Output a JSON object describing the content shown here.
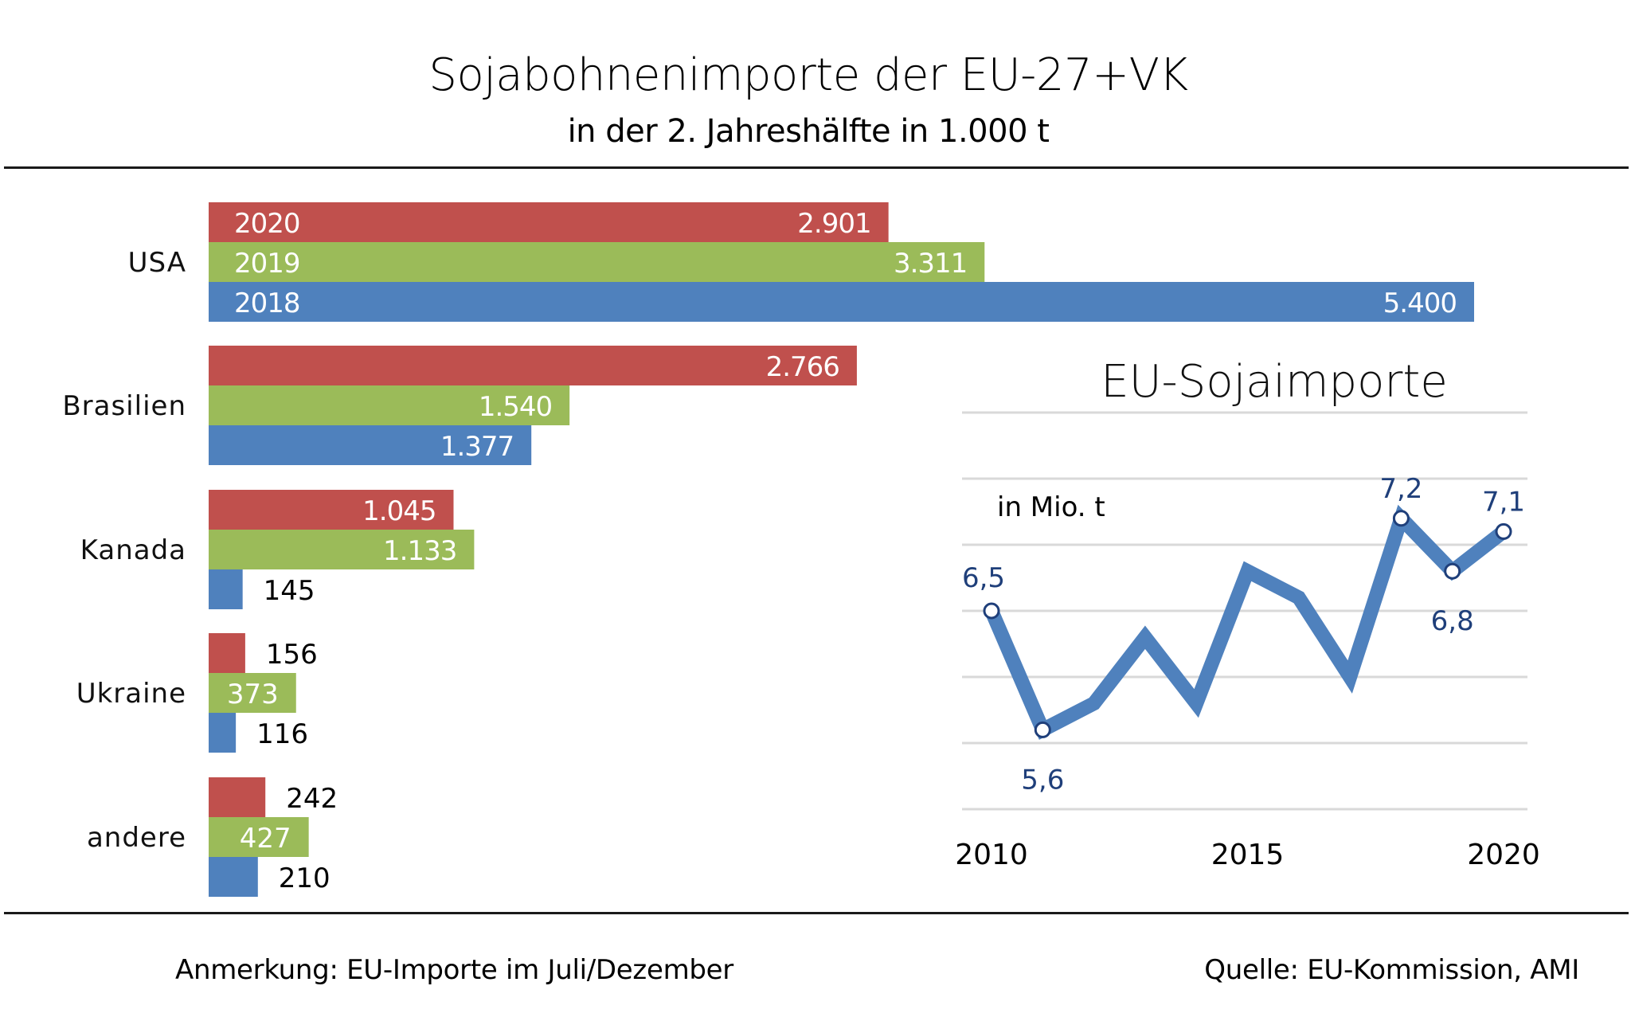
{
  "header": {
    "title": "Sojabohnenimporte  der EU-27+VK",
    "subtitle": "in der 2. Jahreshälfte  in 1.000 t"
  },
  "footer": {
    "note": "Anmerkung: EU-Importe im Juli/Dezember",
    "source": "Quelle:  EU-Kommission, AMI"
  },
  "colors": {
    "2020": "#c0504d",
    "2019": "#9bbb59",
    "2018": "#4f81bd",
    "line": "#4f81bd",
    "line_label": "#1f3f7a",
    "grid": "#d9d9d9"
  },
  "chart_data": [
    {
      "type": "bar",
      "orientation": "horizontal",
      "title": "Sojabohnenimporte  der EU-27+VK",
      "subtitle": "in der 2. Jahreshälfte  in 1.000 t",
      "categories": [
        "USA",
        "Brasilien",
        "Kanada",
        "Ukraine",
        "andere"
      ],
      "series": [
        {
          "name": "2020",
          "values": [
            2901,
            2766,
            1045,
            156,
            242
          ],
          "labels": [
            "2.901",
            "2.766",
            "1.045",
            "156",
            "242"
          ]
        },
        {
          "name": "2019",
          "values": [
            3311,
            1540,
            1133,
            373,
            427
          ],
          "labels": [
            "3.311",
            "1.540",
            "1.133",
            "373",
            "427"
          ]
        },
        {
          "name": "2018",
          "values": [
            5400,
            1377,
            145,
            116,
            210
          ],
          "labels": [
            "5.400",
            "1.377",
            "145",
            "116",
            "210"
          ]
        }
      ],
      "legend": "inline-in-first-group",
      "xlim": [
        0,
        5400
      ],
      "grid": false
    },
    {
      "type": "line",
      "title": "EU-Sojaimporte",
      "ylabel": "in Mio. t",
      "x": [
        2010,
        2011,
        2012,
        2013,
        2014,
        2015,
        2016,
        2017,
        2018,
        2019,
        2020
      ],
      "series": [
        {
          "name": "EU-Sojaimporte",
          "values": [
            6.5,
            5.6,
            5.8,
            6.3,
            5.8,
            6.8,
            6.6,
            6.0,
            7.2,
            6.8,
            7.1
          ]
        }
      ],
      "data_labels": [
        {
          "x": 2010,
          "text": "6,5"
        },
        {
          "x": 2011,
          "text": "5,6"
        },
        {
          "x": 2018,
          "text": "7,2"
        },
        {
          "x": 2019,
          "text": "6,8"
        },
        {
          "x": 2020,
          "text": "7,1"
        }
      ],
      "xticks": [
        "2010",
        "2015",
        "2020"
      ],
      "ylim": [
        5.0,
        8.0
      ],
      "grid": true
    }
  ]
}
